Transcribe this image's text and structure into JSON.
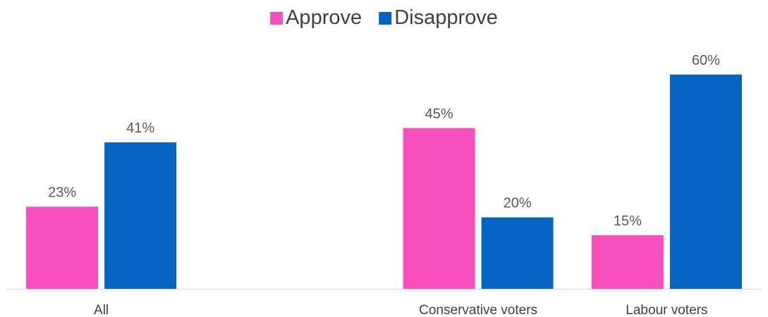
{
  "chart_data": {
    "type": "bar",
    "categories": [
      "All",
      "",
      "Conservative voters",
      "Labour voters"
    ],
    "series": [
      {
        "name": "Approve",
        "values": [
          23,
          null,
          45,
          15
        ],
        "labels": [
          "23%",
          "",
          "45%",
          "15%"
        ],
        "color": "#f74fbd"
      },
      {
        "name": "Disapprove",
        "values": [
          41,
          null,
          20,
          60
        ],
        "labels": [
          "41%",
          "",
          "20%",
          "60%"
        ],
        "color": "#0563c1"
      }
    ],
    "legend_position": "top-center",
    "ylim": [
      0,
      60
    ],
    "grid": false,
    "axis_line_color": "#d9d9d9"
  }
}
